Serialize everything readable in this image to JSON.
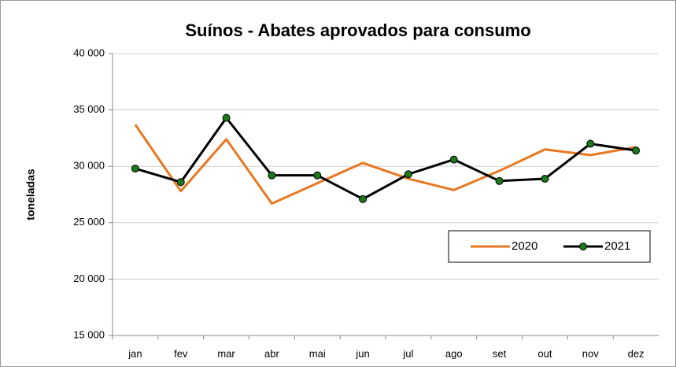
{
  "chart_data": {
    "type": "line",
    "title": "Suínos - Abates aprovados para consumo",
    "y_label": "toneladas",
    "categories": [
      "jan",
      "fev",
      "mar",
      "abr",
      "mai",
      "jun",
      "jul",
      "ago",
      "set",
      "out",
      "nov",
      "dez"
    ],
    "series": [
      {
        "name": "2020",
        "color": "#e87722",
        "markers": false,
        "values": [
          33700,
          27800,
          32400,
          26700,
          28500,
          30300,
          28900,
          27900,
          29600,
          31500,
          31000,
          31700
        ]
      },
      {
        "name": "2021",
        "color": "#000000",
        "marker_color": "#1a7a1a",
        "markers": true,
        "values": [
          29800,
          28600,
          34300,
          29200,
          29200,
          27100,
          29300,
          30600,
          28700,
          28900,
          32000,
          31400
        ]
      }
    ],
    "ylim": [
      15000,
      40000
    ],
    "yticks": [
      {
        "value": 15000,
        "label": "15 000"
      },
      {
        "value": 20000,
        "label": "20 000"
      },
      {
        "value": 25000,
        "label": "25 000"
      },
      {
        "value": 30000,
        "label": "30 000"
      },
      {
        "value": 35000,
        "label": "35 000"
      },
      {
        "value": 40000,
        "label": "40 000"
      }
    ],
    "grid": true,
    "legend": "right"
  }
}
